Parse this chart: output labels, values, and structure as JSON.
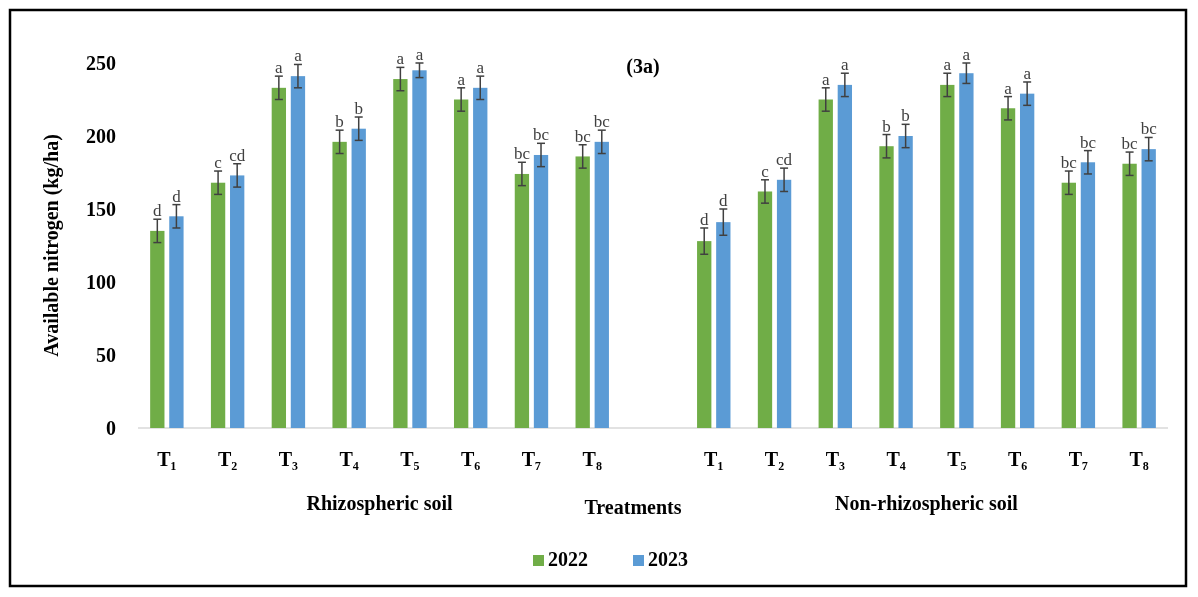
{
  "chart_data": {
    "type": "bar",
    "title": "(3a)",
    "xlabel": "Treatments",
    "ylabel": "Available nitrogen (kg/ha)",
    "categories": [
      "T₁",
      "T₂",
      "T₃",
      "T₄",
      "T₅",
      "T₆",
      "T₇",
      "T₈",
      null,
      "T₁",
      "T₂",
      "T₃",
      "T₄",
      "T₅",
      "T₆",
      "T₇",
      "T₈"
    ],
    "series": [
      {
        "name": "2022",
        "color": "#70ad47",
        "values": [
          135,
          168,
          233,
          196,
          239,
          225,
          174,
          186,
          null,
          128,
          162,
          225,
          193,
          235,
          219,
          168,
          181
        ],
        "errors": [
          8,
          8,
          8,
          8,
          8,
          8,
          8,
          8,
          null,
          9,
          8,
          8,
          8,
          8,
          8,
          8,
          8
        ],
        "value_labels": [
          "d",
          "c",
          "a",
          "b",
          "a",
          "a",
          "bc",
          "bc",
          null,
          "d",
          "c",
          "a",
          "b",
          "a",
          "a",
          "bc",
          "bc"
        ]
      },
      {
        "name": "2023",
        "color": "#5b9bd5",
        "values": [
          145,
          173,
          241,
          205,
          245,
          233,
          187,
          196,
          null,
          141,
          170,
          235,
          200,
          243,
          229,
          182,
          191
        ],
        "errors": [
          8,
          8,
          8,
          8,
          5,
          8,
          8,
          8,
          null,
          9,
          8,
          8,
          8,
          7,
          8,
          8,
          8
        ],
        "value_labels": [
          "d",
          "cd",
          "a",
          "b",
          "a",
          "a",
          "bc",
          "bc",
          null,
          "d",
          "cd",
          "a",
          "b",
          "a",
          "a",
          "bc",
          "bc"
        ]
      }
    ],
    "annotations": [
      "Rhizospheric soil",
      "Non-rhizospheric soil"
    ],
    "ylim": [
      0,
      250
    ],
    "yticks": [
      0,
      50,
      100,
      150,
      200,
      250
    ],
    "grid": false,
    "legend": "bottom"
  }
}
